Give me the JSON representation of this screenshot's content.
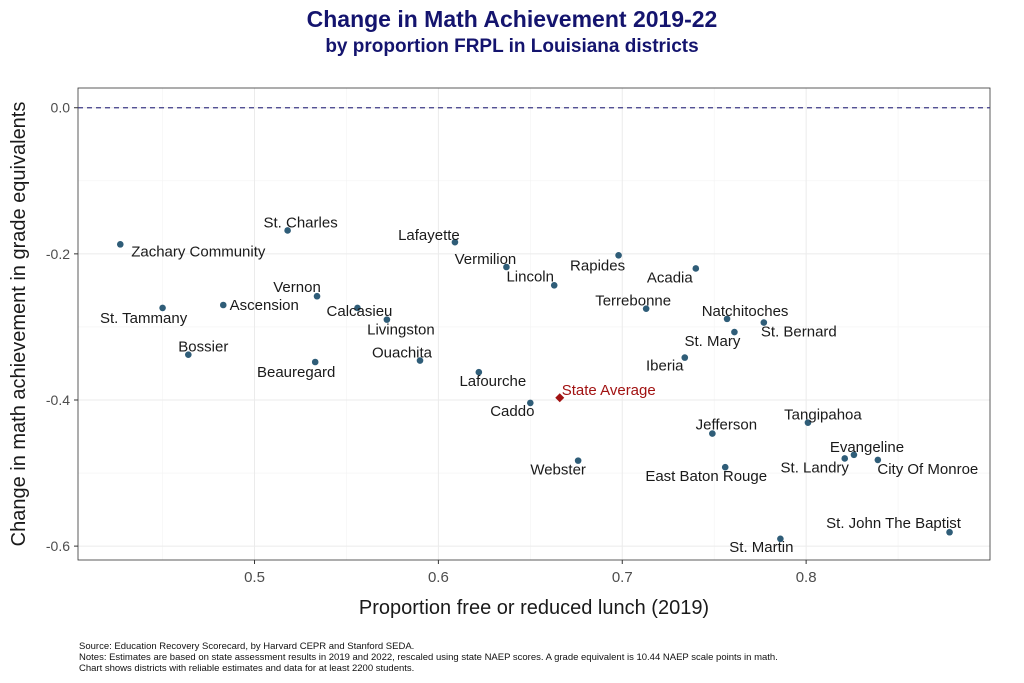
{
  "chart_data": {
    "type": "scatter",
    "title": "Change in Math Achievement 2019-22",
    "subtitle": "by proportion FRPL in Louisiana districts",
    "xlabel": "Proportion free or reduced lunch (2019)",
    "ylabel": "Change in math achievement in grade equivalents",
    "xlim": [
      0.404,
      0.9
    ],
    "ylim": [
      -0.619,
      0.027
    ],
    "xticks": [
      {
        "v": 0.5,
        "label": "0.5"
      },
      {
        "v": 0.6,
        "label": "0.6"
      },
      {
        "v": 0.7,
        "label": "0.7"
      },
      {
        "v": 0.8,
        "label": "0.8"
      }
    ],
    "yticks": [
      {
        "v": 0.0,
        "label": "0.0"
      },
      {
        "v": -0.2,
        "label": "-0.2"
      },
      {
        "v": -0.4,
        "label": "-0.4"
      },
      {
        "v": -0.6,
        "label": "-0.6"
      }
    ],
    "grid": true,
    "reference_line": {
      "y": 0.0,
      "style": "dashed",
      "color": "#3d3a86"
    },
    "point_color": "#2f5d78",
    "highlight_color": "#a11212",
    "points": [
      {
        "label": "Zachary Community",
        "x": 0.427,
        "y": -0.187
      },
      {
        "label": "St. Charles",
        "x": 0.518,
        "y": -0.168
      },
      {
        "label": "Lafayette",
        "x": 0.609,
        "y": -0.184
      },
      {
        "label": "Vermilion",
        "x": 0.637,
        "y": -0.218
      },
      {
        "label": "Rapides",
        "x": 0.698,
        "y": -0.202
      },
      {
        "label": "Acadia",
        "x": 0.74,
        "y": -0.22
      },
      {
        "label": "Lincoln",
        "x": 0.663,
        "y": -0.243
      },
      {
        "label": "St. Tammany",
        "x": 0.45,
        "y": -0.274
      },
      {
        "label": "Ascension",
        "x": 0.483,
        "y": -0.27
      },
      {
        "label": "Vernon",
        "x": 0.534,
        "y": -0.258
      },
      {
        "label": "Calcasieu",
        "x": 0.556,
        "y": -0.274
      },
      {
        "label": "Livingston",
        "x": 0.572,
        "y": -0.29
      },
      {
        "label": "Terrebonne",
        "x": 0.713,
        "y": -0.275
      },
      {
        "label": "Natchitoches",
        "x": 0.757,
        "y": -0.289
      },
      {
        "label": "St. Bernard",
        "x": 0.777,
        "y": -0.294
      },
      {
        "label": "St. Mary",
        "x": 0.761,
        "y": -0.307
      },
      {
        "label": "Bossier",
        "x": 0.464,
        "y": -0.338
      },
      {
        "label": "Beauregard",
        "x": 0.533,
        "y": -0.348
      },
      {
        "label": "Ouachita",
        "x": 0.59,
        "y": -0.346
      },
      {
        "label": "Iberia",
        "x": 0.734,
        "y": -0.342
      },
      {
        "label": "Lafourche",
        "x": 0.622,
        "y": -0.362
      },
      {
        "label": "State Average",
        "x": 0.666,
        "y": -0.397,
        "highlight": true
      },
      {
        "label": "Caddo",
        "x": 0.65,
        "y": -0.404
      },
      {
        "label": "Jefferson",
        "x": 0.749,
        "y": -0.446
      },
      {
        "label": "Tangipahoa",
        "x": 0.801,
        "y": -0.431
      },
      {
        "label": "Evangeline",
        "x": 0.826,
        "y": -0.475
      },
      {
        "label": "St. Landry",
        "x": 0.821,
        "y": -0.48
      },
      {
        "label": "City Of Monroe",
        "x": 0.839,
        "y": -0.482
      },
      {
        "label": "Webster",
        "x": 0.676,
        "y": -0.483
      },
      {
        "label": "East Baton Rouge",
        "x": 0.756,
        "y": -0.492
      },
      {
        "label": "St. John The Baptist",
        "x": 0.878,
        "y": -0.581
      },
      {
        "label": "St. Martin",
        "x": 0.786,
        "y": -0.59
      }
    ]
  },
  "footer": {
    "source": "Source: Education Recovery Scorecard, by Harvard CEPR and Stanford SEDA.",
    "notes": "Notes: Estimates are based on state assessment results in 2019 and 2022, rescaled using state NAEP scores. A grade equivalent is 10.44 NAEP scale points in math.",
    "chart_note": "Chart shows districts with reliable estimates and data for at least 2200 students."
  }
}
